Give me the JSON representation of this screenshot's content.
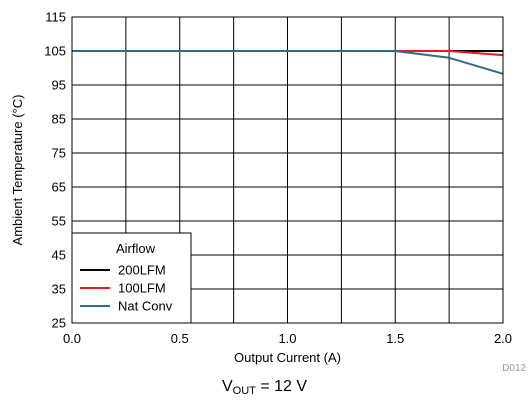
{
  "chart_data": {
    "type": "line",
    "xlabel": "Output Current (A)",
    "ylabel": "Ambient Temperature (°C)",
    "xlim": [
      0,
      2.0
    ],
    "ylim": [
      25,
      115
    ],
    "x_ticks": [
      0.0,
      0.25,
      0.5,
      0.75,
      1.0,
      1.25,
      1.5,
      1.75,
      2.0
    ],
    "x_tick_labels": [
      "0.0",
      "",
      "0.5",
      "",
      "1.0",
      "",
      "1.5",
      "",
      "2.0"
    ],
    "y_ticks": [
      25,
      35,
      45,
      55,
      65,
      75,
      85,
      95,
      105,
      115
    ],
    "y_tick_labels": [
      "25",
      "35",
      "45",
      "55",
      "65",
      "75",
      "85",
      "95",
      "105",
      "115"
    ],
    "grid": true,
    "legend": {
      "title": "Airflow",
      "placement": "bottom-left"
    },
    "series": [
      {
        "name": "200LFM",
        "color": "#000000",
        "x": [
          0.0,
          1.5,
          1.75,
          2.0
        ],
        "y": [
          105,
          105,
          105,
          105
        ]
      },
      {
        "name": "100LFM",
        "color": "#e31b23",
        "x": [
          0.0,
          1.5,
          1.75,
          2.0
        ],
        "y": [
          105,
          105,
          105,
          103.8
        ]
      },
      {
        "name": "Nat Conv",
        "color": "#336a8a",
        "x": [
          0.0,
          1.5,
          1.75,
          2.0
        ],
        "y": [
          105,
          105,
          103,
          98.3
        ]
      }
    ]
  },
  "figure_id": "D012",
  "caption": {
    "main": "V",
    "subscript": "OUT",
    "suffix": " = 12 V"
  }
}
